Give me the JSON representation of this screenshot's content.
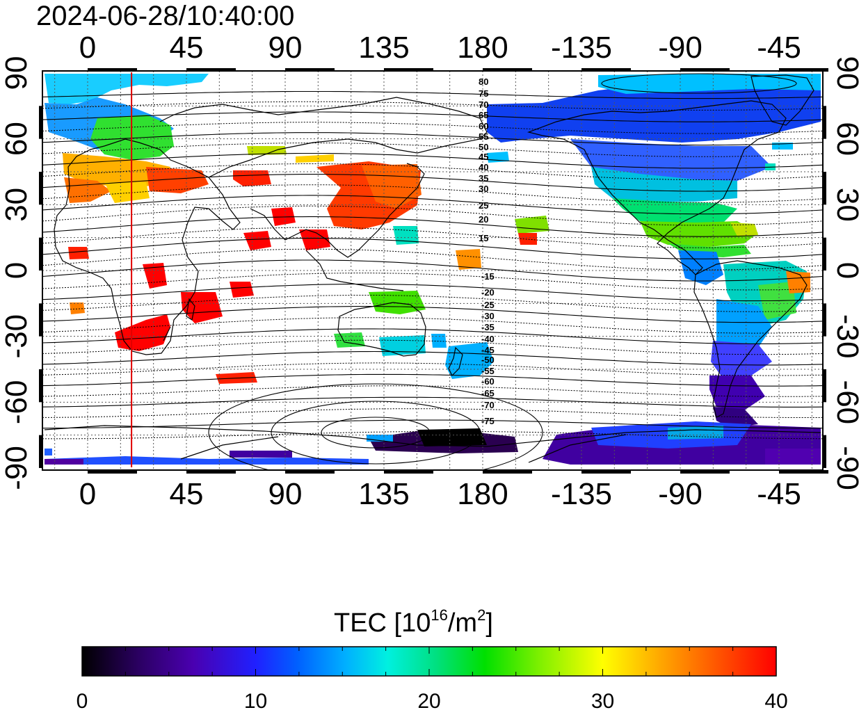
{
  "timestamp": "2024-06-28/10:40:00",
  "map": {
    "x_tick_labels": [
      "0",
      "45",
      "90",
      "135",
      "180",
      "-135",
      "-90",
      "-45"
    ],
    "y_tick_labels": [
      "90",
      "60",
      "30",
      "0",
      "-30",
      "-60",
      "-90"
    ],
    "marker_longitude": 20,
    "marker_color": "#e00000",
    "contour_labels_north": [
      "80",
      "75",
      "70",
      "65",
      "60",
      "55",
      "50",
      "45",
      "40",
      "35",
      "30",
      "25",
      "20",
      "15"
    ],
    "contour_labels_south": [
      "-15",
      "-20",
      "-25",
      "-30",
      "-35",
      "-40",
      "-45",
      "-50",
      "-55",
      "-60",
      "-65",
      "-70",
      "-75"
    ]
  },
  "colorbar": {
    "title_main": "TEC  [10",
    "title_sup1": "16",
    "title_mid": "/m",
    "title_sup2": "2",
    "title_end": "]",
    "tick_labels": [
      "0",
      "10",
      "20",
      "30",
      "40"
    ],
    "min": 0,
    "max": 40,
    "colors": [
      "#000000",
      "#2a0060",
      "#4a00b0",
      "#2020ff",
      "#0060ff",
      "#00b0ff",
      "#00f0e0",
      "#00e080",
      "#00e000",
      "#80f000",
      "#ffff00",
      "#ffa000",
      "#ff5000",
      "#ff0000"
    ]
  }
}
